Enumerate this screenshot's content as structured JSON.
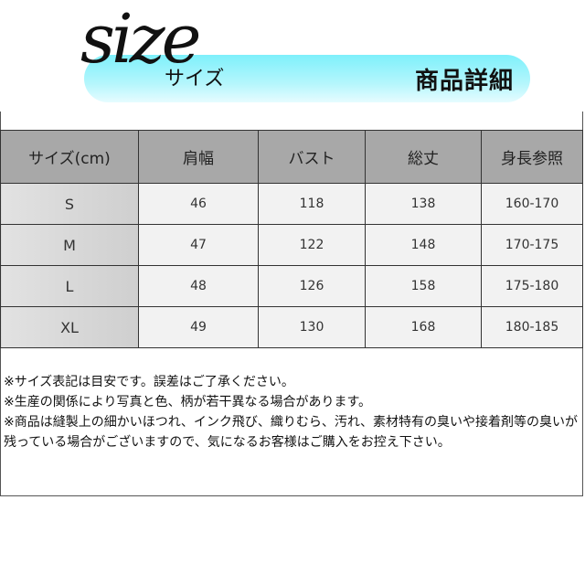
{
  "header": {
    "logo_text": "size",
    "logo_kana": "サイズ",
    "title": "商品詳細"
  },
  "table": {
    "headers": [
      "サイズ(cm)",
      "肩幅",
      "バスト",
      "総丈",
      "身長参照"
    ],
    "rows": [
      [
        "S",
        "46",
        "118",
        "138",
        "160-170"
      ],
      [
        "M",
        "47",
        "122",
        "148",
        "170-175"
      ],
      [
        "L",
        "48",
        "126",
        "158",
        "175-180"
      ],
      [
        "XL",
        "49",
        "130",
        "168",
        "180-185"
      ]
    ]
  },
  "notes": [
    "※サイズ表記は目安です。誤差はご了承ください。",
    "※生産の関係により写真と色、柄が若干異なる場合があります。",
    "※商品は縫製上の細かいほつれ、インク飛び、織りむら、汚れ、素材特有の臭いや接着剤等の臭いが残っている場合がございますので、気になるお客様はご購入をお控え下さい。"
  ]
}
